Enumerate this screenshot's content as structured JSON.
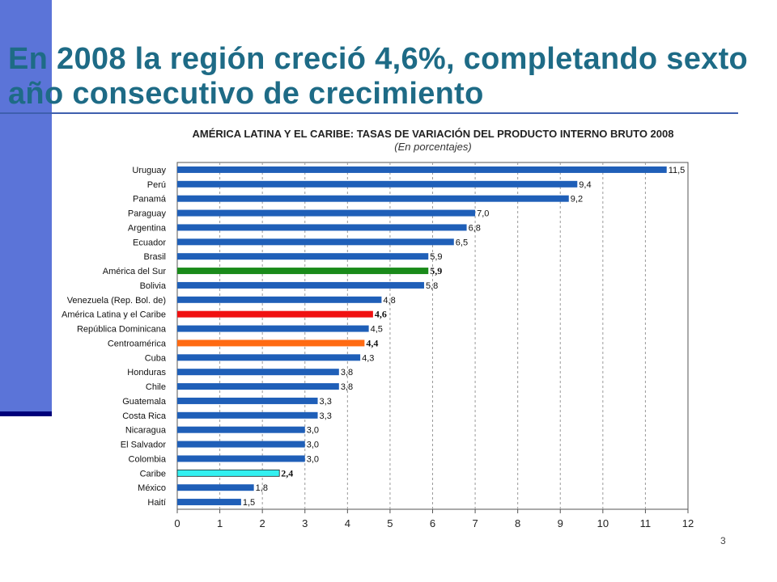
{
  "slide": {
    "title": "En 2008 la región creció 4,6%, completando sexto año consecutivo de crecimiento",
    "page_number": "3"
  },
  "colors": {
    "accent_bar": "#5B74D8",
    "title_text": "#1E6B86",
    "default_bar": "#1F5FB8",
    "america_del_sur": "#1A8A1A",
    "america_latina": "#F01010",
    "centroamerica": "#FF6A12",
    "caribe": "#33F0F0"
  },
  "chart_data": {
    "type": "bar",
    "orientation": "horizontal",
    "title": "AMÉRICA LATINA Y EL CARIBE: TASAS DE VARIACIÓN DEL PRODUCTO INTERNO BRUTO 2008",
    "subtitle": "(En porcentajes)",
    "xlabel": "",
    "ylabel": "",
    "xlim": [
      0,
      12
    ],
    "x_ticks": [
      "0",
      "1",
      "2",
      "3",
      "4",
      "5",
      "6",
      "7",
      "8",
      "9",
      "10",
      "11",
      "12"
    ],
    "grid": "vertical dashed",
    "categories": [
      "Uruguay",
      "Perú",
      "Panamá",
      "Paraguay",
      "Argentina",
      "Ecuador",
      "Brasil",
      "América del Sur",
      "Bolivia",
      "Venezuela (Rep. Bol. de)",
      "América Latina y el Caribe",
      "República Dominicana",
      "Centroamérica",
      "Cuba",
      "Honduras",
      "Chile",
      "Guatemala",
      "Costa Rica",
      "Nicaragua",
      "El Salvador",
      "Colombia",
      "Caribe",
      "México",
      "Haití"
    ],
    "values": [
      11.5,
      9.4,
      9.2,
      7.0,
      6.8,
      6.5,
      5.9,
      5.9,
      5.8,
      4.8,
      4.6,
      4.5,
      4.4,
      4.3,
      3.8,
      3.8,
      3.3,
      3.3,
      3.0,
      3.0,
      3.0,
      2.4,
      1.8,
      1.5
    ],
    "value_labels": [
      "11,5",
      "9,4",
      "9,2",
      "7,0",
      "6,8",
      "6,5",
      "5,9",
      "5,9",
      "5,8",
      "4,8",
      "4,6",
      "4,5",
      "4,4",
      "4,3",
      "3,8",
      "3,8",
      "3,3",
      "3,3",
      "3,0",
      "3,0",
      "3,0",
      "2,4",
      "1,8",
      "1,5"
    ],
    "highlights": {
      "América del Sur": "america_del_sur",
      "América Latina y el Caribe": "america_latina",
      "Centroamérica": "centroamerica",
      "Caribe": "caribe"
    }
  }
}
